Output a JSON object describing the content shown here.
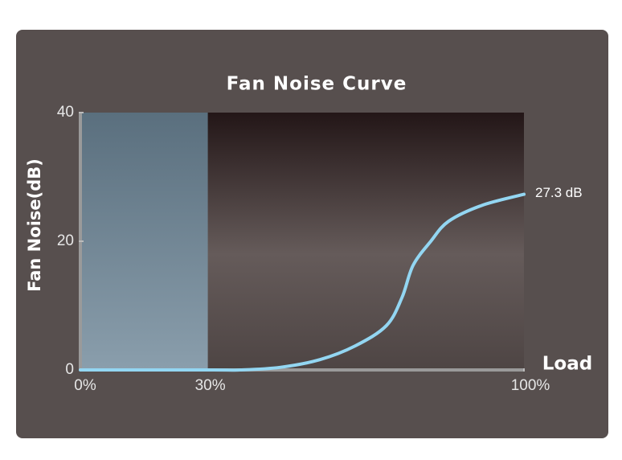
{
  "chart_data": {
    "type": "line",
    "title": "Fan Noise Curve",
    "x_label": "Load",
    "y_label": "Fan Noise(dB)",
    "x": [
      0,
      30,
      36,
      45,
      54,
      62,
      69,
      72.5,
      75,
      79,
      83,
      90.6,
      100
    ],
    "series": [
      {
        "color": "#93d6f2",
        "values": [
          0,
          0,
          0,
          0.4,
          1.6,
          3.75,
          6.9,
          11.25,
          16.25,
          20,
          23.1,
          25.6,
          27.3
        ],
        "value_labels": [
          null,
          null,
          null,
          null,
          null,
          null,
          null,
          null,
          null,
          null,
          null,
          null,
          "27.3 dB"
        ]
      }
    ],
    "highlight": {
      "xrange": [
        0,
        30
      ],
      "color": "#7f98a8"
    },
    "xlim": [
      0,
      100
    ],
    "xticks": [
      {
        "value": 0,
        "label": "0%"
      },
      {
        "value": 30,
        "label": "30%"
      },
      {
        "value": 100,
        "label": "100%"
      }
    ],
    "ylim": [
      0,
      40
    ],
    "yticks": [
      0,
      20,
      40
    ]
  }
}
